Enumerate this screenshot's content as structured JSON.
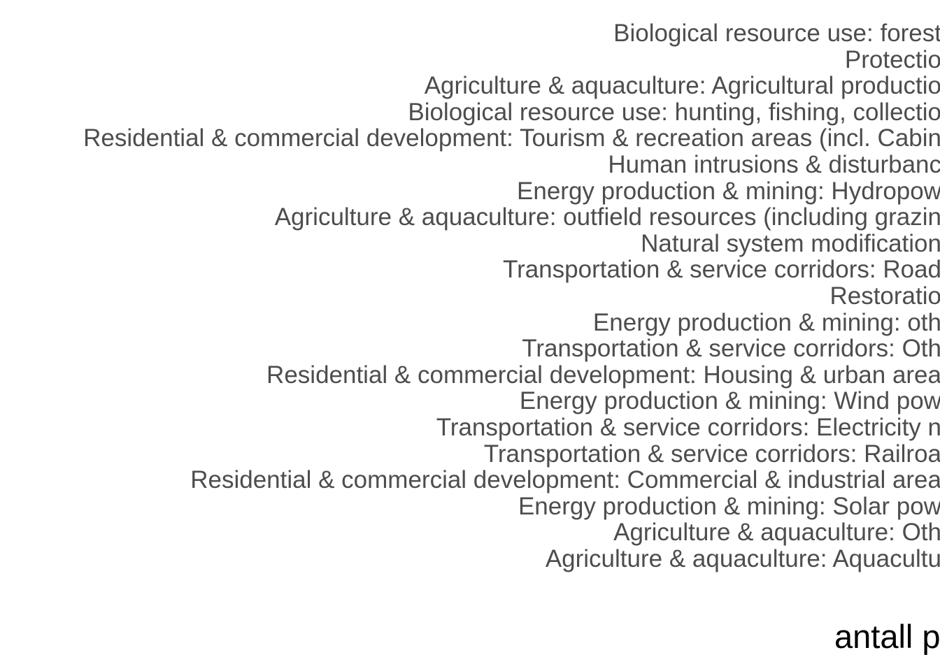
{
  "chart_data": {
    "type": "bar",
    "orientation": "horizontal",
    "categories": [
      "Biological resource use: forest",
      "Protectio",
      "Agriculture & aquaculture: Agricultural productio",
      "Biological resource use: hunting, fishing, collectio",
      "Residential & commercial development: Tourism & recreation areas (incl. Cabin",
      "Human intrusions & disturbanc",
      "Energy production & mining: Hydropow",
      "Agriculture & aquaculture: outfield resources (including grazin",
      "Natural system modification",
      "Transportation & service corridors: Road",
      "Restoratio",
      "Energy production & mining: oth",
      "Transportation & service corridors: Oth",
      "Residential & commercial development: Housing & urban area",
      "Energy production & mining: Wind pow",
      "Transportation & service corridors: Electricity n",
      "Transportation & service corridors: Railroa",
      "Residential & commercial development: Commercial & industrial area",
      "Energy production & mining: Solar pow",
      "Agriculture & aquaculture: Oth",
      "Agriculture & aquaculture: Aquacultu"
    ],
    "xlabel": "antall p",
    "ylabel": "",
    "title": "",
    "label_color": "#4d4d4d",
    "axis_title_color": "#000000",
    "background": "#ffffff"
  }
}
